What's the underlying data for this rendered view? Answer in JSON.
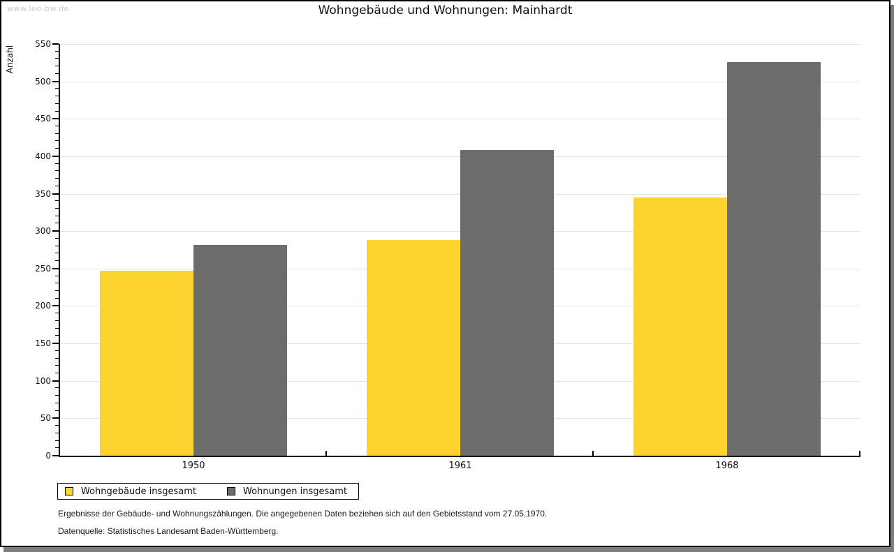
{
  "watermark": "www.leo-bw.de",
  "title": "Wohngebäude und Wohnungen: Mainhardt",
  "chart_data": {
    "type": "bar",
    "title": "Wohngebäude und Wohnungen: Mainhardt",
    "xlabel": "",
    "ylabel": "Anzahl",
    "categories": [
      "1950",
      "1961",
      "1968"
    ],
    "series": [
      {
        "name": "Wohngebäude insgesamt",
        "color": "#fcd32f",
        "values": [
          247,
          288,
          345
        ]
      },
      {
        "name": "Wohnungen insgesamt",
        "color": "#6c6c6c",
        "values": [
          282,
          408,
          526
        ]
      }
    ],
    "ylim": [
      0,
      550
    ],
    "y_major_step": 50,
    "y_minor_step": 10,
    "grid": "horizontal-major-only",
    "legend_position": "bottom-left"
  },
  "footer": {
    "note": "Ergebnisse der Gebäude- und Wohnungszählungen. Die angegebenen Daten beziehen sich auf den Gebietsstand vom 27.05.1970.",
    "source": "Datenquelle: Statistisches Landesamt Baden-Württemberg."
  },
  "colors": {
    "bar_yellow": "#fcd32f",
    "bar_gray": "#6c6c6c",
    "gridline": "#e3e3e3",
    "watermark": "#c9c9c9",
    "card_shadow": "#7d7d7d"
  }
}
